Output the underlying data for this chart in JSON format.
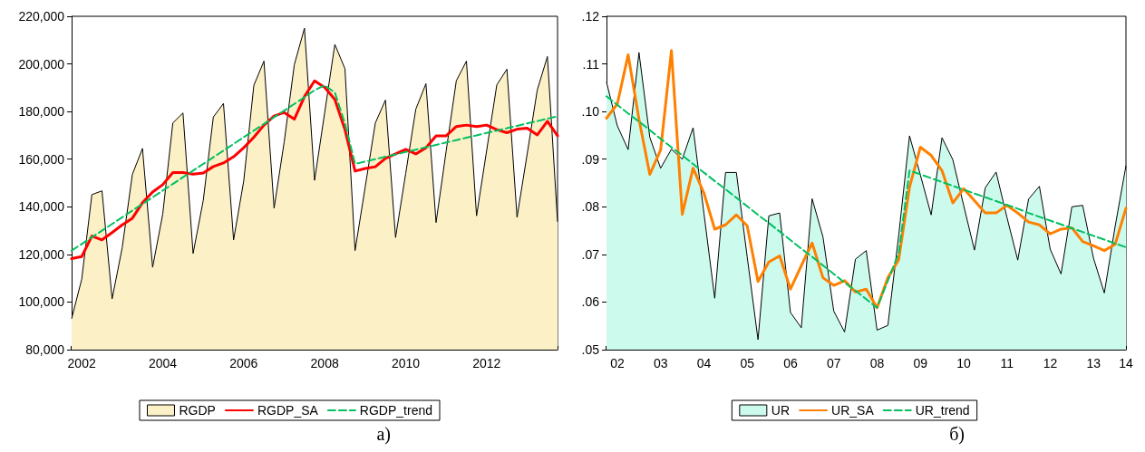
{
  "chart_data": [
    {
      "type": "line",
      "categories": [
        null,
        "2002",
        null,
        null,
        null,
        null,
        null,
        null,
        null,
        "2004",
        null,
        null,
        null,
        null,
        null,
        null,
        null,
        "2006",
        null,
        null,
        null,
        null,
        null,
        null,
        null,
        "2008",
        null,
        null,
        null,
        null,
        null,
        null,
        null,
        "2010",
        null,
        null,
        null,
        null,
        null,
        null,
        null,
        "2012",
        null,
        null,
        null,
        null,
        null,
        null,
        null
      ],
      "series": [
        {
          "name": "RGDP",
          "type": "area",
          "color": "#fbf0c6",
          "values": [
            93000,
            109600,
            145100,
            146700,
            101300,
            122900,
            153600,
            164500,
            114600,
            136900,
            175200,
            179400,
            120400,
            142600,
            177700,
            183400,
            126100,
            150800,
            191000,
            201200,
            139400,
            167300,
            199700,
            215000,
            151100,
            179600,
            208200,
            198000,
            121600,
            148300,
            175200,
            184800,
            127100,
            154000,
            181000,
            191700,
            133400,
            163500,
            192900,
            201200,
            136200,
            163700,
            191200,
            197800,
            135600,
            162200,
            189100,
            203100,
            133700
          ]
        },
        {
          "name": "RGDP_SA",
          "color": "#ff0000",
          "values": [
            118200,
            119100,
            127700,
            126100,
            129200,
            132400,
            135200,
            141700,
            146200,
            149300,
            154400,
            154400,
            153700,
            154200,
            156900,
            158400,
            161000,
            164800,
            169200,
            174300,
            178100,
            179600,
            176800,
            186300,
            192900,
            190100,
            185100,
            172400,
            155000,
            156100,
            156800,
            160300,
            162200,
            164100,
            162200,
            164800,
            169800,
            169800,
            173700,
            174300,
            173700,
            174300,
            172400,
            171100,
            172600,
            173000,
            170200,
            175900,
            169800
          ]
        },
        {
          "name": "RGDP_trend",
          "color": "#00c060",
          "line_style": "dashed",
          "values": [
            121600,
            124400,
            127200,
            130000,
            132800,
            135600,
            138400,
            141200,
            144000,
            146800,
            149600,
            152400,
            155200,
            158000,
            160800,
            163600,
            166400,
            169200,
            172000,
            174800,
            177600,
            180400,
            183200,
            186000,
            189000,
            191000,
            188000,
            175000,
            158000,
            159000,
            160000,
            161000,
            162000,
            163000,
            164000,
            165000,
            166000,
            167000,
            168000,
            169000,
            170000,
            171000,
            172000,
            173000,
            174000,
            175000,
            176000,
            177000,
            178000
          ]
        }
      ],
      "ylim": [
        80000,
        220000
      ],
      "yticks": [
        {
          "value": 80000,
          "label": "80,000"
        },
        {
          "value": 100000,
          "label": "100,000"
        },
        {
          "value": 120000,
          "label": "120,000"
        },
        {
          "value": 140000,
          "label": "140,000"
        },
        {
          "value": 160000,
          "label": "160,000"
        },
        {
          "value": 180000,
          "label": "180,000"
        },
        {
          "value": 200000,
          "label": "200,000"
        },
        {
          "value": 220000,
          "label": "220,000"
        }
      ],
      "legend": "bottom",
      "marker": "none",
      "annotations": [
        "а)"
      ]
    },
    {
      "type": "line",
      "categories": [
        null,
        "02",
        null,
        null,
        null,
        "03",
        null,
        null,
        null,
        "04",
        null,
        null,
        null,
        "05",
        null,
        null,
        null,
        "06",
        null,
        null,
        null,
        "07",
        null,
        null,
        null,
        "08",
        null,
        null,
        null,
        "09",
        null,
        null,
        null,
        "10",
        null,
        null,
        null,
        "11",
        null,
        null,
        null,
        "12",
        null,
        null,
        null,
        "13",
        null,
        null,
        "14"
      ],
      "series": [
        {
          "name": "UR",
          "type": "area",
          "color": "#ccfbee",
          "values": [
            0.1062,
            0.097,
            0.092,
            0.1124,
            0.0946,
            0.0881,
            0.0921,
            0.09,
            0.0966,
            0.0787,
            0.0608,
            0.0872,
            0.0872,
            0.0695,
            0.0521,
            0.0781,
            0.0787,
            0.0578,
            0.0546,
            0.0817,
            0.0737,
            0.0581,
            0.0537,
            0.069,
            0.0708,
            0.0541,
            0.0551,
            0.074,
            0.0949,
            0.0867,
            0.0783,
            0.0945,
            0.0899,
            0.0803,
            0.0709,
            0.084,
            0.0873,
            0.0778,
            0.0688,
            0.0816,
            0.0843,
            0.0711,
            0.0659,
            0.08,
            0.0803,
            0.0692,
            0.0619,
            0.0759,
            0.0886
          ]
        },
        {
          "name": "UR_SA",
          "color": "#ff8000",
          "values": [
            0.0986,
            0.1016,
            0.1119,
            0.0984,
            0.0868,
            0.0919,
            0.1128,
            0.0784,
            0.0881,
            0.0829,
            0.0753,
            0.0762,
            0.0783,
            0.076,
            0.0643,
            0.0684,
            0.0697,
            0.0627,
            0.0676,
            0.0724,
            0.0651,
            0.0635,
            0.0645,
            0.0621,
            0.0627,
            0.0588,
            0.0651,
            0.0689,
            0.0841,
            0.0925,
            0.0908,
            0.0876,
            0.0808,
            0.0838,
            0.0813,
            0.0787,
            0.0787,
            0.0803,
            0.0787,
            0.0768,
            0.0762,
            0.0743,
            0.0753,
            0.0756,
            0.0727,
            0.0718,
            0.0708,
            0.0721,
            0.0797
          ]
        },
        {
          "name": "UR_trend",
          "color": "#00c060",
          "line_style": "dashed",
          "values": [
            0.1032,
            0.1014,
            0.0996,
            0.0979,
            0.0961,
            0.0943,
            0.0925,
            0.0908,
            0.089,
            0.0872,
            0.0854,
            0.0837,
            0.0819,
            0.0801,
            0.0783,
            0.0766,
            0.0748,
            0.073,
            0.0712,
            0.0695,
            0.0677,
            0.0659,
            0.0641,
            0.0624,
            0.0606,
            0.0588,
            0.0645,
            0.0702,
            0.0876,
            0.0868,
            0.086,
            0.0852,
            0.0844,
            0.0836,
            0.0828,
            0.082,
            0.0812,
            0.0804,
            0.0796,
            0.0787,
            0.0779,
            0.0771,
            0.0763,
            0.0755,
            0.0747,
            0.0739,
            0.0731,
            0.0723,
            0.0715
          ]
        }
      ],
      "ylim": [
        0.05,
        0.12
      ],
      "yticks": [
        {
          "value": 0.05,
          "label": ".05"
        },
        {
          "value": 0.06,
          "label": ".06"
        },
        {
          "value": 0.07,
          "label": ".07"
        },
        {
          "value": 0.08,
          "label": ".08"
        },
        {
          "value": 0.09,
          "label": ".09"
        },
        {
          "value": 0.1,
          "label": ".10"
        },
        {
          "value": 0.11,
          "label": ".11"
        },
        {
          "value": 0.12,
          "label": ".12"
        }
      ],
      "legend": "bottom",
      "marker": "none",
      "annotations": [
        "б)"
      ]
    }
  ]
}
